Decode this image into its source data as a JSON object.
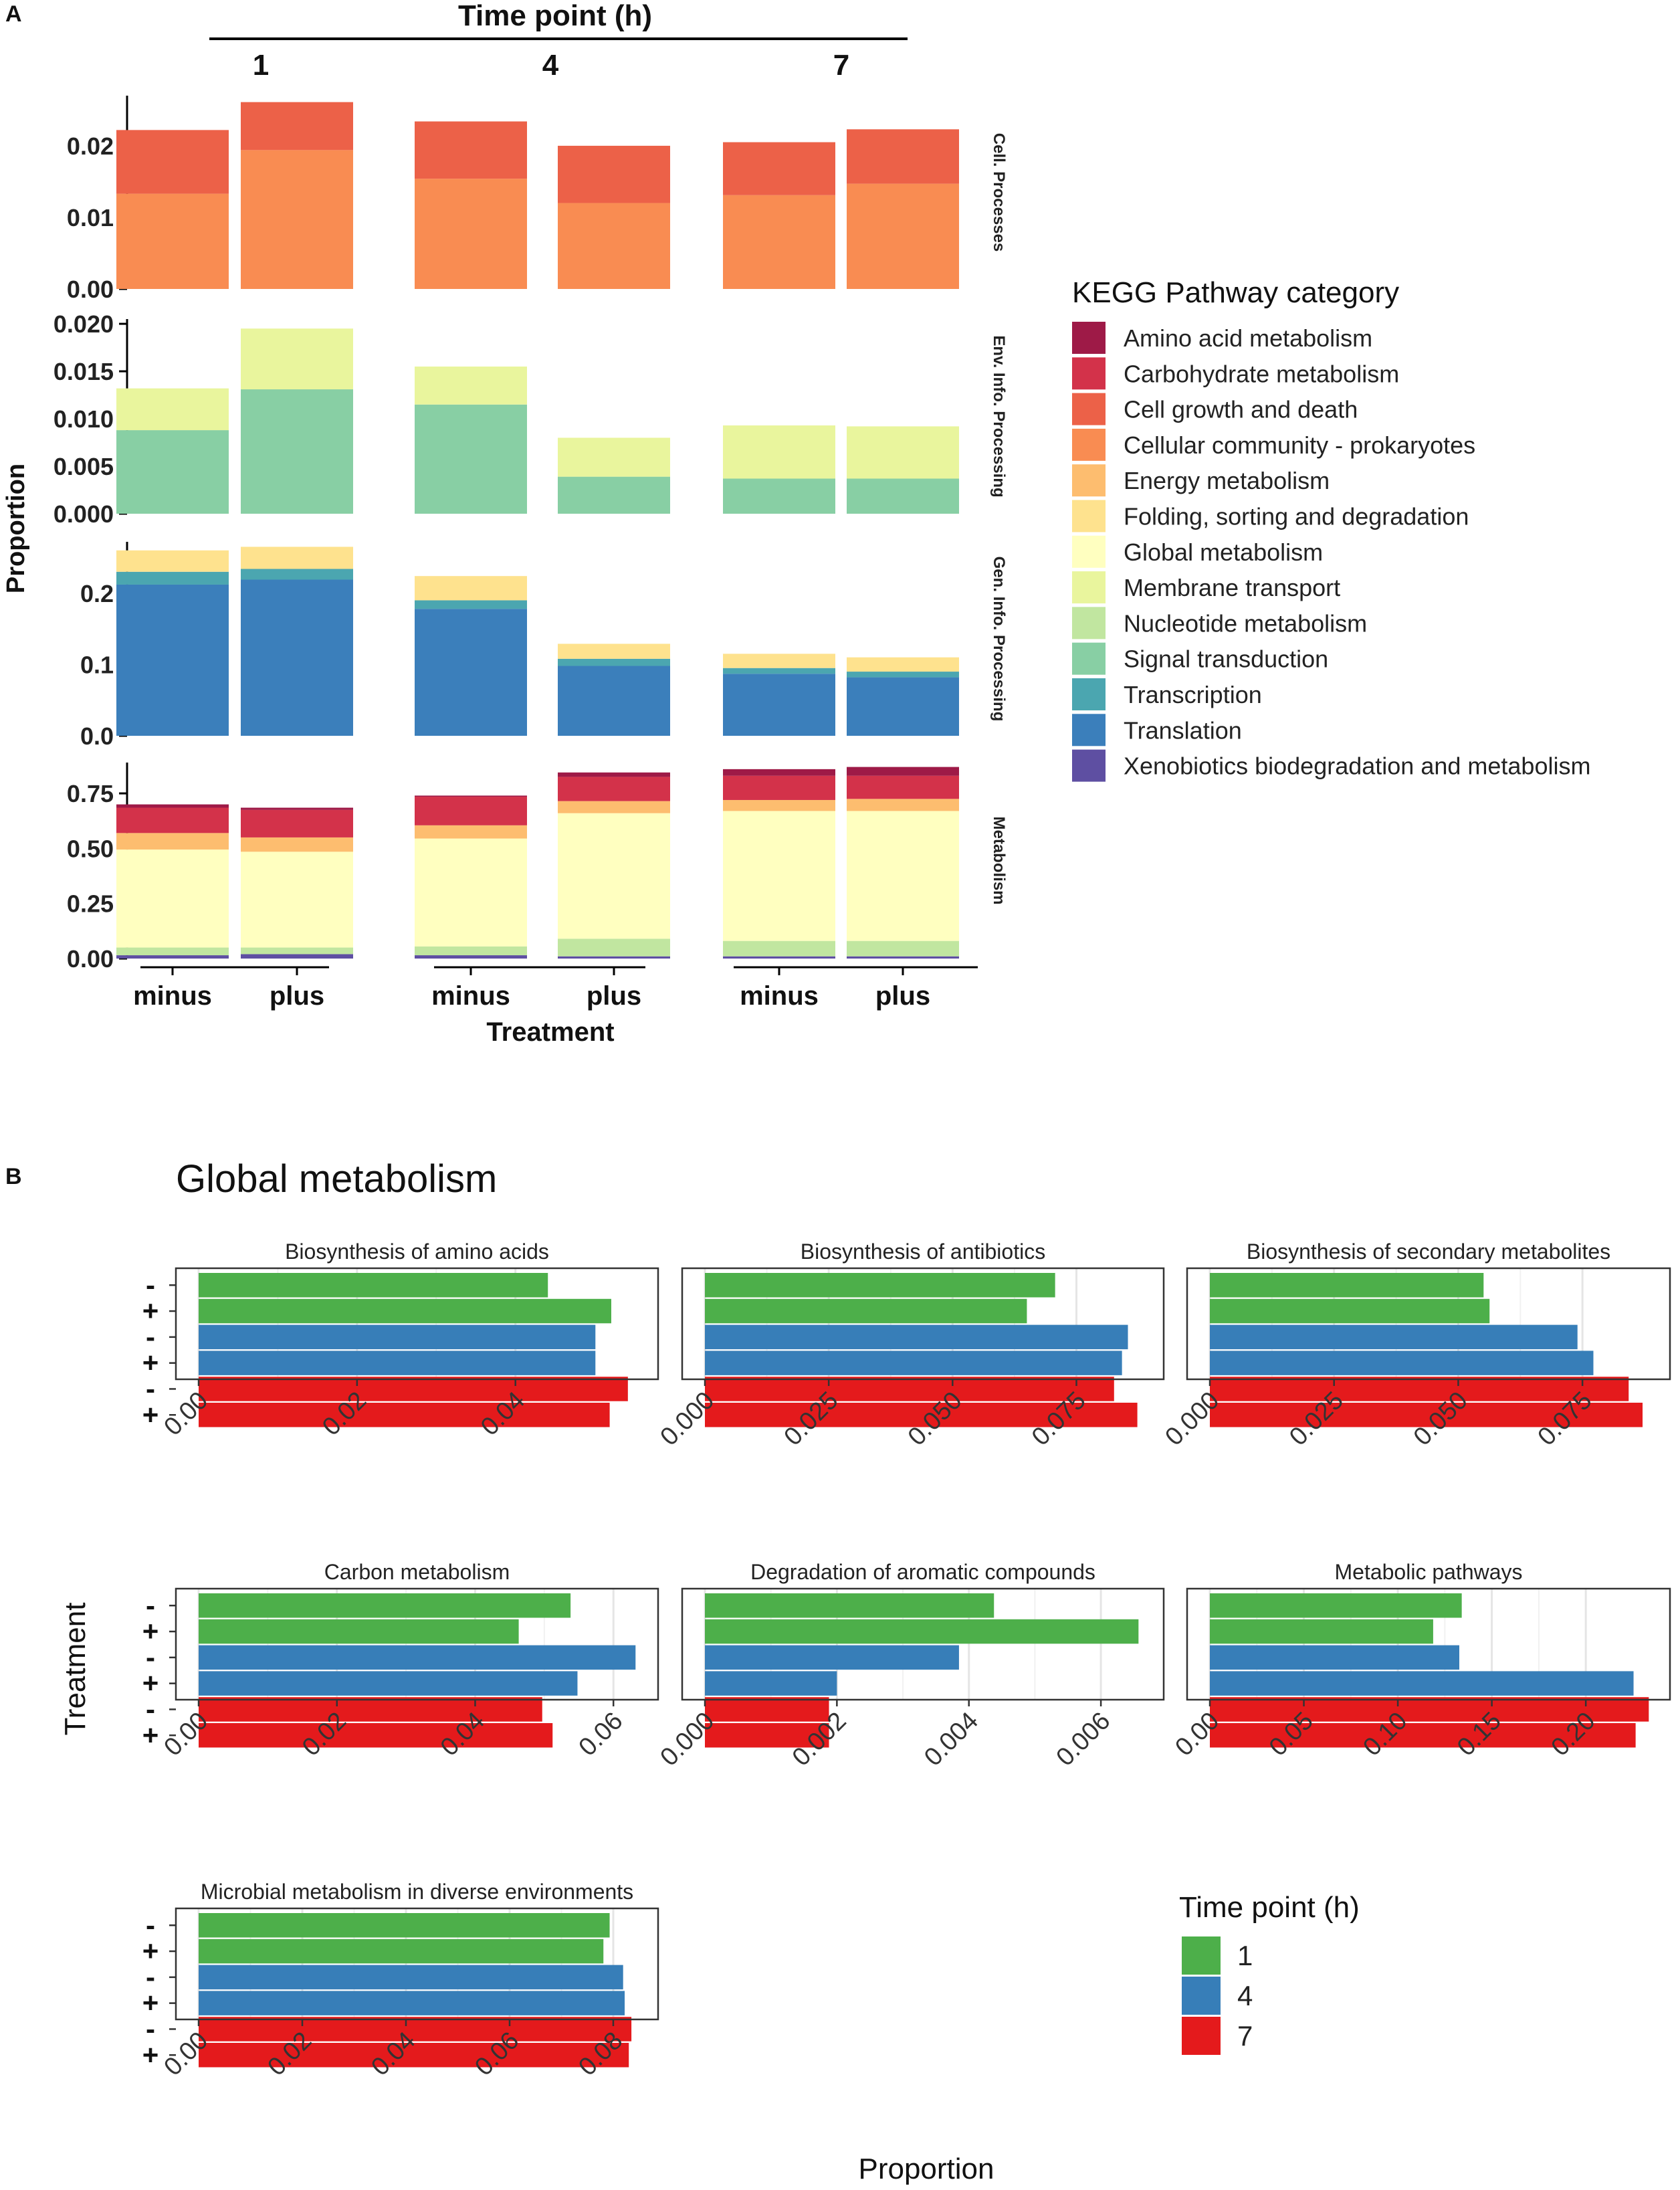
{
  "figure": {
    "panel_a_label": "A",
    "panel_b_label": "B",
    "panel_b_title": "Global metabolism"
  },
  "palette": {
    "Amino acid metabolism": "#9E1A47",
    "Carbohydrate metabolism": "#D3324A",
    "Cell growth and death": "#EC6148",
    "Cellular community - prokaryotes": "#F98C52",
    "Energy metabolism": "#FDBD6F",
    "Folding, sorting and degradation": "#FEE28E",
    "Global metabolism": "#FFFFC0",
    "Membrane transport": "#E9F59D",
    "Nucleotide metabolism": "#C1E6A0",
    "Signal transduction": "#88CFA4",
    "Transcription": "#4BA6B0",
    "Translation": "#3B7FBB",
    "Xenobiotics biodegradation and metabolism": "#5E4FA2",
    "time1": "#4DAF4A",
    "time4": "#377EB8",
    "time7": "#E41A1C"
  },
  "chart_data": [
    {
      "type": "bar",
      "stacked": true,
      "title": "Time point (h)",
      "xlabel": "Treatment",
      "ylabel": "Proportion",
      "facet_columns": [
        "1",
        "4",
        "7"
      ],
      "categories": [
        "minus",
        "plus"
      ],
      "legend": {
        "title": "KEGG Pathway category",
        "placement": "right",
        "entries": [
          "Amino acid metabolism",
          "Carbohydrate metabolism",
          "Cell growth and death",
          "Cellular community - prokaryotes",
          "Energy metabolism",
          "Folding, sorting and degradation",
          "Global metabolism",
          "Membrane transport",
          "Nucleotide metabolism",
          "Signal transduction",
          "Transcription",
          "Translation",
          "Xenobiotics biodegradation and metabolism"
        ]
      },
      "facet_rows": [
        {
          "label": "Cell. Processes",
          "ylim": [
            0,
            0.027
          ],
          "ticks": [
            0.0,
            0.01,
            0.02
          ],
          "tick_labels": [
            "0.00",
            "0.01",
            "0.02"
          ],
          "stack_order": [
            "Cellular community - prokaryotes",
            "Cell growth and death"
          ],
          "values": {
            "1": {
              "minus": [
                0.0133,
                0.0089
              ],
              "plus": [
                0.0194,
                0.0067
              ]
            },
            "4": {
              "minus": [
                0.0154,
                0.008
              ],
              "plus": [
                0.012,
                0.008
              ]
            },
            "7": {
              "minus": [
                0.0131,
                0.0074
              ],
              "plus": [
                0.0147,
                0.0076
              ]
            }
          }
        },
        {
          "label": "Env. Info. Processing",
          "ylim": [
            0,
            0.0205
          ],
          "ticks": [
            0.0,
            0.005,
            0.01,
            0.015,
            0.02
          ],
          "tick_labels": [
            "0.000",
            "0.005",
            "0.010",
            "0.015",
            "0.020"
          ],
          "stack_order": [
            "Signal transduction",
            "Membrane transport"
          ],
          "values": {
            "1": {
              "minus": [
                0.0088,
                0.0044
              ],
              "plus": [
                0.0131,
                0.0064
              ]
            },
            "4": {
              "minus": [
                0.0115,
                0.004
              ],
              "plus": [
                0.0039,
                0.0041
              ]
            },
            "7": {
              "minus": [
                0.0037,
                0.0056
              ],
              "plus": [
                0.0037,
                0.0055
              ]
            }
          }
        },
        {
          "label": "Gen. Info. Processing",
          "ylim": [
            0,
            0.272
          ],
          "ticks": [
            0.0,
            0.1,
            0.2
          ],
          "tick_labels": [
            "0.0",
            "0.1",
            "0.2"
          ],
          "stack_order": [
            "Translation",
            "Transcription",
            "Folding, sorting and degradation"
          ],
          "values": {
            "1": {
              "minus": [
                0.212,
                0.018,
                0.03
              ],
              "plus": [
                0.219,
                0.015,
                0.031
              ]
            },
            "4": {
              "minus": [
                0.178,
                0.012,
                0.034
              ],
              "plus": [
                0.098,
                0.01,
                0.021
              ]
            },
            "7": {
              "minus": [
                0.087,
                0.008,
                0.02
              ],
              "plus": [
                0.082,
                0.008,
                0.02
              ]
            }
          }
        },
        {
          "label": "Metabolism",
          "ylim": [
            0,
            0.89
          ],
          "ticks": [
            0.0,
            0.25,
            0.5,
            0.75
          ],
          "tick_labels": [
            "0.00",
            "0.25",
            "0.50",
            "0.75"
          ],
          "stack_order": [
            "Xenobiotics biodegradation and metabolism",
            "Nucleotide metabolism",
            "Global metabolism",
            "Energy metabolism",
            "Carbohydrate metabolism",
            "Amino acid metabolism"
          ],
          "values": {
            "1": {
              "minus": [
                0.015,
                0.035,
                0.445,
                0.075,
                0.115,
                0.015
              ],
              "plus": [
                0.02,
                0.03,
                0.435,
                0.065,
                0.125,
                0.01
              ]
            },
            "4": {
              "minus": [
                0.015,
                0.04,
                0.49,
                0.06,
                0.13,
                0.005
              ],
              "plus": [
                0.01,
                0.08,
                0.57,
                0.055,
                0.11,
                0.02
              ]
            },
            "7": {
              "minus": [
                0.01,
                0.07,
                0.59,
                0.05,
                0.11,
                0.03
              ],
              "plus": [
                0.01,
                0.07,
                0.59,
                0.055,
                0.105,
                0.04
              ]
            }
          }
        }
      ]
    },
    {
      "type": "bar",
      "orientation": "horizontal",
      "title": "Global metabolism",
      "xlabel": "Proportion",
      "ylabel": "Treatment",
      "row_labels": [
        "-",
        "+",
        "-",
        "+",
        "-",
        "+"
      ],
      "row_timepoints": [
        "1",
        "1",
        "4",
        "4",
        "7",
        "7"
      ],
      "legend": {
        "title": "Time point  (h)",
        "placement": "bottom-right",
        "entries": [
          "1",
          "4",
          "7"
        ]
      },
      "facets": [
        {
          "title": "Biosynthesis of amino acids",
          "xlim": [
            0,
            0.057
          ],
          "ticks": [
            0,
            0.02,
            0.04
          ],
          "tick_labels": [
            "0.00",
            "0.02",
            "0.04"
          ],
          "values": [
            0.0441,
            0.0521,
            0.0501,
            0.0501,
            0.0542,
            0.0519
          ]
        },
        {
          "title": "Biosynthesis of antibiotics",
          "xlim": [
            0,
            0.091
          ],
          "ticks": [
            0,
            0.025,
            0.05,
            0.075
          ],
          "tick_labels": [
            "0.000",
            "0.025",
            "0.050",
            "0.075"
          ],
          "values": [
            0.0707,
            0.065,
            0.0854,
            0.0842,
            0.0826,
            0.0873
          ]
        },
        {
          "title": "Biosynthesis of secondary metabolites",
          "xlim": [
            0,
            0.091
          ],
          "ticks": [
            0,
            0.025,
            0.05,
            0.075
          ],
          "tick_labels": [
            "0.000",
            "0.025",
            "0.050",
            "0.075"
          ],
          "values": [
            0.0551,
            0.0563,
            0.074,
            0.0772,
            0.0843,
            0.0871
          ]
        },
        {
          "title": "Carbon metabolism",
          "xlim": [
            0,
            0.0653
          ],
          "ticks": [
            0,
            0.02,
            0.04,
            0.06
          ],
          "tick_labels": [
            "0.00",
            "0.02",
            "0.04",
            "0.06"
          ],
          "values": [
            0.0538,
            0.0463,
            0.0632,
            0.0548,
            0.0497,
            0.0512
          ]
        },
        {
          "title": "Degradation of aromatic compounds",
          "xlim": [
            0,
            0.00683
          ],
          "ticks": [
            0,
            0.002,
            0.004,
            0.006
          ],
          "tick_labels": [
            "0.000",
            "0.002",
            "0.004",
            "0.006"
          ],
          "values": [
            0.00438,
            0.00657,
            0.00385,
            0.002,
            0.00188,
            0.00188
          ]
        },
        {
          "title": "Metabolic pathways",
          "xlim": [
            0,
            0.2405
          ],
          "ticks": [
            0,
            0.05,
            0.1,
            0.15,
            0.2
          ],
          "tick_labels": [
            "0.00",
            "0.05",
            "0.10",
            "0.15",
            "0.20"
          ],
          "values": [
            0.134,
            0.1188,
            0.1327,
            0.2254,
            0.2335,
            0.2265
          ]
        },
        {
          "title": "Microbial metabolism in diverse environments",
          "xlim": [
            0,
            0.0871
          ],
          "ticks": [
            0,
            0.02,
            0.04,
            0.06,
            0.08
          ],
          "tick_labels": [
            "0.00",
            "0.02",
            "0.04",
            "0.06",
            "0.08"
          ],
          "values": [
            0.0793,
            0.0781,
            0.0819,
            0.0822,
            0.0835,
            0.083
          ]
        }
      ]
    }
  ]
}
